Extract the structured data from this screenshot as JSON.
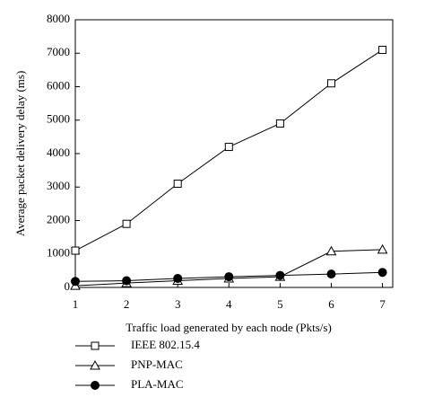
{
  "chart_data": {
    "type": "line",
    "x_label": "Traffic load generated by each node (Pkts/s)",
    "y_label": "Average packet delivery delay (ms)",
    "x": [
      1,
      2,
      3,
      4,
      5,
      6,
      7
    ],
    "series": [
      {
        "name": "IEEE 802.15.4",
        "color": "#000000",
        "marker": "square",
        "values": [
          1100,
          1900,
          3100,
          4200,
          4900,
          6100,
          7100
        ]
      },
      {
        "name": "PNP-MAC",
        "color": "#000000",
        "marker": "triangle",
        "values": [
          50,
          130,
          200,
          270,
          320,
          1080,
          1130
        ]
      },
      {
        "name": "PLA-MAC",
        "color": "#000000",
        "marker": "circle",
        "values": [
          180,
          200,
          270,
          320,
          360,
          400,
          450
        ]
      }
    ],
    "xlim": [
      1,
      7.2
    ],
    "xticks": [
      1,
      2,
      3,
      4,
      5,
      6,
      7
    ],
    "ylim": [
      0,
      8000
    ],
    "yticks": [
      0,
      1000,
      2000,
      3000,
      4000,
      5000,
      6000,
      7000,
      8000
    ],
    "grid": false,
    "legend": "below"
  }
}
